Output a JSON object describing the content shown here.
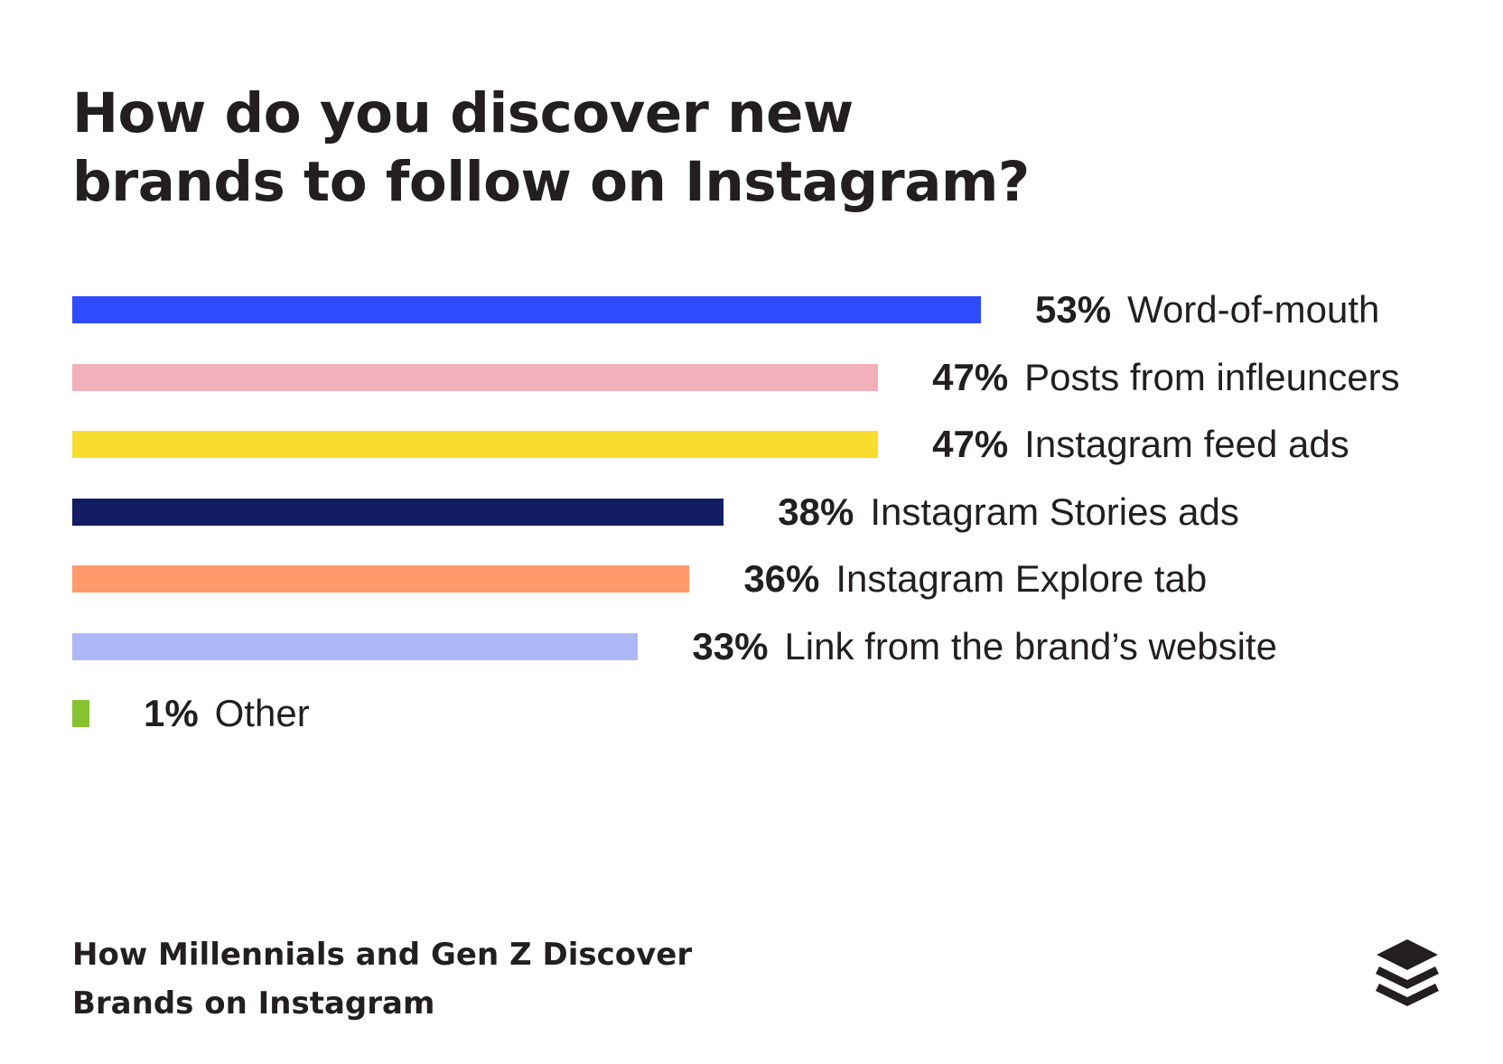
{
  "title": {
    "line1": "How do you discover new",
    "line2": "brands to follow on Instagram?"
  },
  "chart_data": {
    "type": "bar",
    "orientation": "horizontal",
    "title": "How do you discover new brands to follow on Instagram?",
    "unit": "%",
    "xlim": [
      0,
      53
    ],
    "categories": [
      "Word-of-mouth",
      "Posts from infleuncers",
      "Instagram feed ads",
      "Instagram Stories ads",
      "Instagram Explore tab",
      "Link from the brand’s website",
      "Other"
    ],
    "values": [
      53,
      47,
      47,
      38,
      36,
      33,
      1
    ],
    "value_labels": [
      "53%",
      "47%",
      "47%",
      "38%",
      "36%",
      "33%",
      "1%"
    ],
    "colors": [
      "#2e4bff",
      "#f2b0ba",
      "#f9dd2c",
      "#121d63",
      "#ff9a6b",
      "#adb8f9",
      "#86c232"
    ],
    "grid": false,
    "legend": "none"
  },
  "footer": {
    "line1": "How Millennials and Gen Z Discover",
    "line2": "Brands on Instagram"
  },
  "logo": {
    "icon": "buffer-logo-icon"
  }
}
